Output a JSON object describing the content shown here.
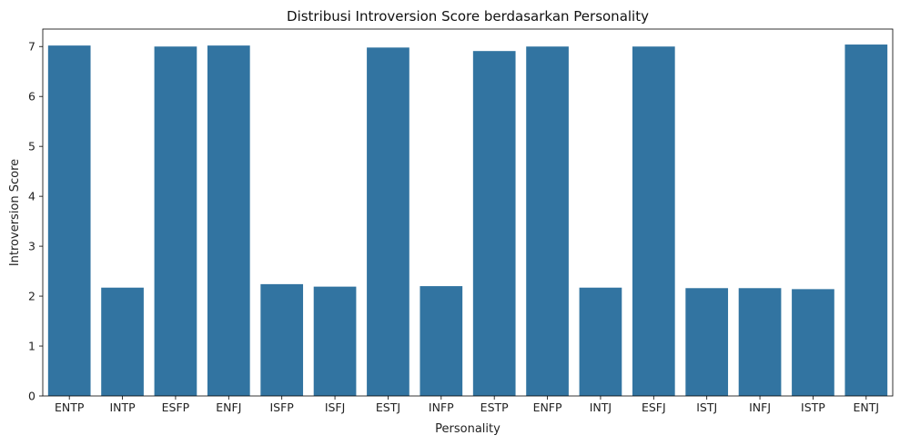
{
  "chart_data": {
    "type": "bar",
    "title": "Distribusi Introversion Score berdasarkan Personality",
    "xlabel": "Personality",
    "ylabel": "Introversion Score",
    "categories": [
      "ENTP",
      "INTP",
      "ESFP",
      "ENFJ",
      "ISFP",
      "ISFJ",
      "ESTJ",
      "INFP",
      "ESTP",
      "ENFP",
      "INTJ",
      "ESFJ",
      "ISTJ",
      "INFJ",
      "ISTP",
      "ENTJ"
    ],
    "values": [
      7.02,
      2.17,
      7.0,
      7.02,
      2.24,
      2.19,
      6.98,
      2.2,
      6.91,
      7.0,
      2.17,
      7.0,
      2.16,
      2.16,
      2.14,
      7.04
    ],
    "ylim": [
      0,
      7.35
    ],
    "yticks": [
      0,
      1,
      2,
      3,
      4,
      5,
      6,
      7
    ],
    "grid": false,
    "bar_color": "#3274a1"
  }
}
